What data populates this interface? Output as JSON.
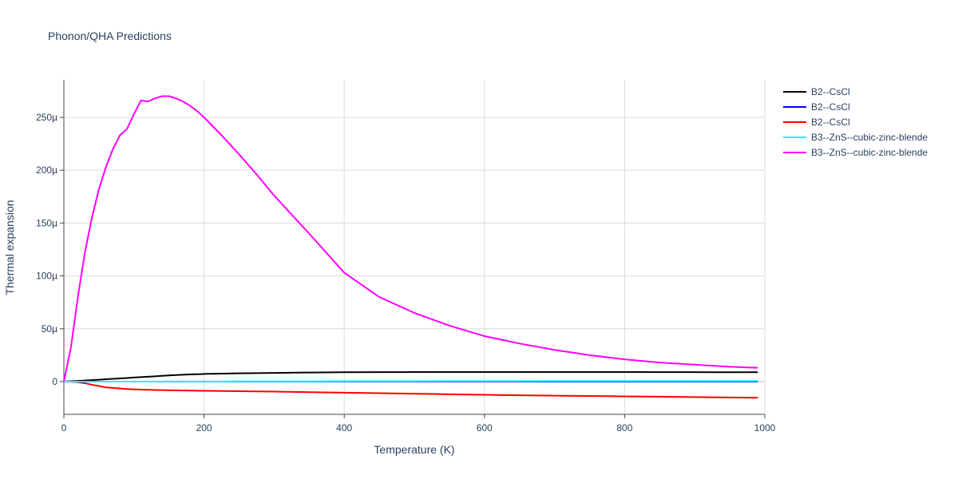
{
  "chart_data": {
    "type": "line",
    "title": "Phonon/QHA Predictions",
    "x_label": "Temperature (K)",
    "y_label": "Thermal expansion",
    "x": [
      0,
      10,
      20,
      30,
      40,
      50,
      60,
      70,
      80,
      90,
      100,
      110,
      120,
      130,
      140,
      150,
      160,
      170,
      180,
      190,
      200,
      225,
      250,
      275,
      300,
      350,
      400,
      450,
      500,
      550,
      600,
      650,
      700,
      750,
      800,
      850,
      900,
      950,
      990
    ],
    "series": [
      {
        "name": "B2--CsCl",
        "color": "#000000",
        "values": [
          0,
          3e-07,
          6e-07,
          1e-06,
          1.4e-06,
          1.8e-06,
          2.2e-06,
          2.6e-06,
          3e-06,
          3.4e-06,
          3.8e-06,
          4.2e-06,
          4.6e-06,
          5e-06,
          5.4e-06,
          5.8e-06,
          6.2e-06,
          6.5e-06,
          6.8e-06,
          7e-06,
          7.2e-06,
          7.5e-06,
          7.8e-06,
          8e-06,
          8.2e-06,
          8.6e-06,
          8.8e-06,
          8.9e-06,
          9e-06,
          9e-06,
          9e-06,
          9e-06,
          9e-06,
          9e-06,
          9e-06,
          8.9e-06,
          8.9e-06,
          8.8e-06,
          8.8e-06
        ]
      },
      {
        "name": "B2--CsCl",
        "color": "#0000ff",
        "values": [
          0,
          0,
          0,
          0,
          0,
          0,
          0,
          0,
          0,
          0,
          0,
          0,
          0,
          0,
          0,
          0,
          0,
          0,
          0,
          0,
          0,
          0,
          0,
          0,
          0,
          0,
          0,
          0,
          0,
          0,
          0,
          0,
          0,
          0,
          0,
          0,
          0,
          0,
          0
        ]
      },
      {
        "name": "B2--CsCl",
        "color": "#ff0000",
        "values": [
          0,
          -2e-07,
          -5e-07,
          -1.5e-06,
          -3e-06,
          -4.2e-06,
          -5.5e-06,
          -6e-06,
          -6.5e-06,
          -7e-06,
          -7.4e-06,
          -7.6e-06,
          -7.8e-06,
          -8e-06,
          -8.1e-06,
          -8.2e-06,
          -8.3e-06,
          -8.4e-06,
          -8.5e-06,
          -8.6e-06,
          -8.7e-06,
          -8.9e-06,
          -9.1e-06,
          -9.3e-06,
          -9.5e-06,
          -1e-05,
          -1.05e-05,
          -1.1e-05,
          -1.15e-05,
          -1.2e-05,
          -1.25e-05,
          -1.3e-05,
          -1.33e-05,
          -1.36e-05,
          -1.4e-05,
          -1.43e-05,
          -1.47e-05,
          -1.5e-05,
          -1.53e-05
        ]
      },
      {
        "name": "B3--ZnS--cubic-zinc-blende",
        "color": "#00ffff",
        "values": [
          0,
          0,
          0,
          0,
          0,
          0,
          0,
          0,
          0,
          0,
          0,
          0,
          0,
          0,
          1e-07,
          1e-07,
          1e-07,
          1e-07,
          1e-07,
          1e-07,
          1e-07,
          1e-07,
          2e-07,
          2e-07,
          2e-07,
          2e-07,
          3e-07,
          3e-07,
          3e-07,
          4e-07,
          4e-07,
          4e-07,
          5e-07,
          5e-07,
          5e-07,
          5e-07,
          5e-07,
          5e-07,
          5e-07
        ]
      },
      {
        "name": "B3--ZnS--cubic-zinc-blende",
        "color": "#ff00ff",
        "values": [
          0,
          3.2e-05,
          8e-05,
          0.000122,
          0.000155,
          0.000182,
          0.000203,
          0.00022,
          0.000233,
          0.000239,
          0.000253,
          0.000266,
          0.000265,
          0.000268,
          0.00027,
          0.00027,
          0.000268,
          0.000265,
          0.000261,
          0.000256,
          0.00025,
          0.000233,
          0.000215,
          0.000196,
          0.000176,
          0.00014,
          0.000103,
          8e-05,
          6.5e-05,
          5.3e-05,
          4.3e-05,
          3.6e-05,
          3e-05,
          2.5e-05,
          2.1e-05,
          1.8e-05,
          1.6e-05,
          1.4e-05,
          1.3e-05
        ]
      }
    ],
    "xlim": [
      0,
      1000
    ],
    "xticks": [
      0,
      200,
      400,
      600,
      800,
      1000
    ],
    "ylim": [
      -3.1e-05,
      0.0002855
    ],
    "yticks": [
      0,
      {
        "value": 5e-05,
        "label": "50µ"
      },
      {
        "value": 0.0001,
        "label": "100µ"
      },
      {
        "value": 0.00015,
        "label": "150µ"
      },
      {
        "value": 0.0002,
        "label": "200µ"
      },
      {
        "value": 0.00025,
        "label": "250µ"
      }
    ],
    "grid": true,
    "legend": "right"
  }
}
